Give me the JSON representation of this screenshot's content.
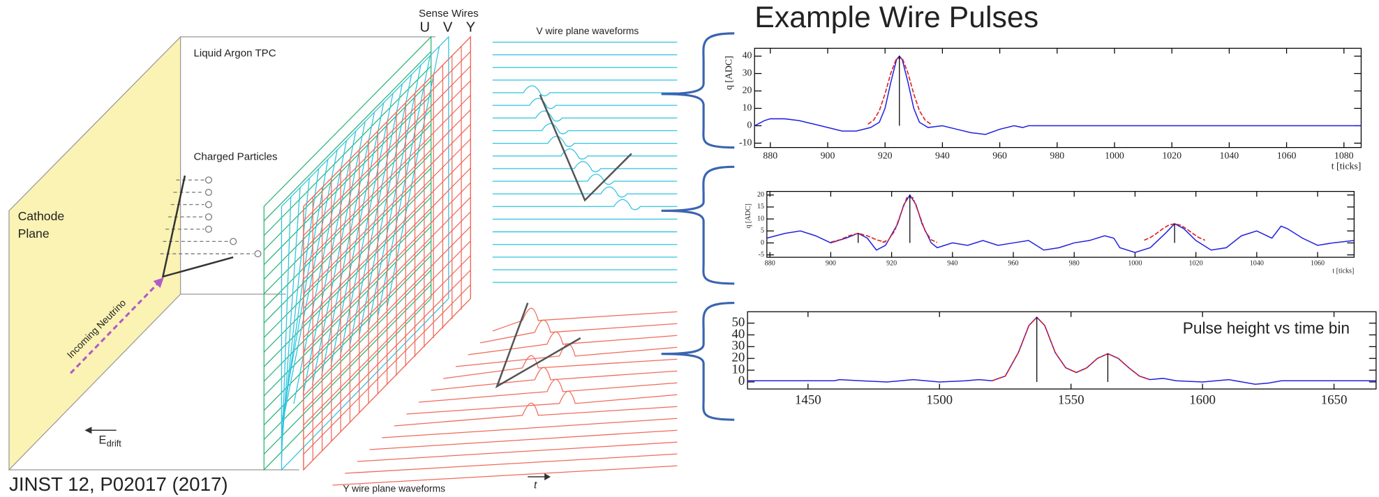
{
  "title": "Example Wire Pulses",
  "citation": "JINST 12, P02017 (2017)",
  "diagram": {
    "tpc_label": "Liquid Argon TPC",
    "sense_wires_label": "Sense Wires",
    "plane_letters": [
      "U",
      "V",
      "Y"
    ],
    "v_waveforms_label": "V wire plane waveforms",
    "y_waveforms_label": "Y wire plane waveforms",
    "charged_particles_label": "Charged Particles",
    "cathode_label": [
      "Cathode",
      "Plane"
    ],
    "neutrino_label": "Incoming Neutrino",
    "drift_label": "E",
    "drift_subscript": "drift",
    "time_label": "t"
  },
  "chart_data": [
    {
      "type": "line",
      "ylabel": "q [ADC]",
      "xlabel": "t [ticks]",
      "xlim": [
        874.5,
        1086
      ],
      "ylim": [
        -12.5,
        44.5
      ],
      "xticks": [
        880,
        900,
        920,
        940,
        960,
        980,
        1000,
        1020,
        1040,
        1060,
        1080
      ],
      "yticks": [
        -10,
        0,
        10,
        20,
        30,
        40
      ],
      "series": [
        {
          "color": "#2020e0",
          "x": [
            874.5,
            878,
            880,
            885,
            890,
            895,
            900,
            905,
            910,
            915,
            918,
            920,
            922,
            924,
            925,
            926,
            928,
            930,
            932,
            935,
            940,
            945,
            950,
            955,
            960,
            965,
            968,
            970,
            1000,
            1086
          ],
          "values": [
            0,
            3,
            4,
            4,
            3,
            1,
            -1,
            -3,
            -3,
            -1,
            2,
            10,
            25,
            38,
            40,
            38,
            25,
            10,
            2,
            -1,
            0,
            -2,
            -4,
            -5,
            -2,
            0,
            -1,
            0,
            0,
            0
          ]
        },
        {
          "color": "#e02020",
          "x": [
            914,
            916,
            918,
            920,
            922,
            924,
            926,
            928,
            930,
            932,
            934,
            936
          ],
          "values": [
            0.9,
            3.2,
            8.6,
            18.3,
            30.2,
            38.8,
            38.8,
            30.2,
            18.3,
            8.6,
            3.2,
            0.9
          ]
        }
      ],
      "peaks": [
        {
          "x": 925,
          "y": 40
        }
      ]
    },
    {
      "type": "line",
      "ylabel": "q [ADC]",
      "xlabel": "t [ticks]",
      "xlim": [
        879,
        1072
      ],
      "ylim": [
        -6,
        21.5
      ],
      "xticks": [
        880,
        900,
        920,
        940,
        960,
        980,
        1000,
        1020,
        1040,
        1060
      ],
      "yticks": [
        -5,
        0,
        5,
        10,
        15,
        20
      ],
      "series": [
        {
          "color": "#2020e0",
          "x": [
            879,
            885,
            890,
            895,
            900,
            905,
            909,
            912,
            915,
            918,
            922,
            924,
            926,
            928,
            930,
            933,
            935,
            940,
            945,
            950,
            955,
            960,
            965,
            970,
            975,
            980,
            985,
            990,
            993,
            995,
            1000,
            1005,
            1010,
            1013,
            1016,
            1020,
            1025,
            1030,
            1035,
            1040,
            1045,
            1048,
            1050,
            1055,
            1060,
            1065,
            1072
          ],
          "values": [
            2,
            4,
            5,
            3,
            0,
            2,
            4,
            2,
            -3,
            -1,
            8,
            16,
            20,
            16,
            8,
            0,
            -2,
            0,
            -1,
            1,
            -1,
            0,
            1,
            -3,
            -2,
            0,
            1,
            3,
            2,
            -2,
            -4,
            -2,
            4,
            8,
            6,
            1,
            -3,
            -2,
            3,
            5,
            2,
            7,
            6,
            2,
            -1,
            0,
            1
          ]
        },
        {
          "color": "#e02020",
          "x": [
            900,
            903,
            906,
            909,
            912,
            915,
            918
          ],
          "values": [
            0.3,
            1.3,
            3.0,
            4,
            3.0,
            1.3,
            0.3
          ]
        },
        {
          "color": "#e02020",
          "x": [
            917,
            919,
            921,
            923,
            925,
            927,
            929,
            931,
            933,
            935
          ],
          "values": [
            0.2,
            1.3,
            5,
            12.1,
            18.9,
            18.9,
            12.1,
            5,
            1.3,
            0.2
          ]
        },
        {
          "color": "#e02020",
          "x": [
            1003,
            1005,
            1007,
            1009,
            1011,
            1013,
            1015,
            1017,
            1019,
            1021,
            1023
          ],
          "values": [
            1.1,
            2.2,
            3.9,
            5.8,
            7.4,
            8,
            7.4,
            5.8,
            3.9,
            2.2,
            1.1
          ]
        }
      ],
      "peaks": [
        {
          "x": 909,
          "y": 4
        },
        {
          "x": 926,
          "y": 20
        },
        {
          "x": 1013,
          "y": 8
        }
      ]
    },
    {
      "type": "line",
      "annotation": "Pulse height vs time bin",
      "xlim": [
        1427,
        1666
      ],
      "ylim": [
        -6,
        59.7
      ],
      "xticks": [
        1450,
        1500,
        1550,
        1600,
        1650
      ],
      "yticks": [
        0,
        10,
        20,
        30,
        40,
        50
      ],
      "series": [
        {
          "color": "#2020e0",
          "x": [
            1427,
            1460,
            1462,
            1470,
            1480,
            1490,
            1500,
            1510,
            1515,
            1520,
            1525,
            1530,
            1534,
            1537,
            1540,
            1544,
            1548,
            1552,
            1556,
            1560,
            1564,
            1568,
            1572,
            1576,
            1580,
            1585,
            1590,
            1600,
            1610,
            1620,
            1625,
            1630,
            1640,
            1666
          ],
          "values": [
            1,
            1,
            2,
            1,
            0,
            2,
            0,
            1,
            2,
            1,
            5,
            25,
            48,
            55,
            48,
            25,
            12,
            8,
            12,
            20,
            24,
            20,
            12,
            5,
            2,
            3,
            1,
            0,
            2,
            -2,
            -1,
            1,
            1,
            1
          ]
        },
        {
          "color": "#e02020",
          "x": [
            1520,
            1525,
            1530,
            1534,
            1537,
            1540,
            1544,
            1548,
            1552,
            1556,
            1560,
            1564,
            1568,
            1572,
            1576,
            1580
          ],
          "values": [
            1,
            5,
            25,
            48,
            55,
            48,
            25,
            12,
            8,
            12,
            20,
            24,
            20,
            12,
            5,
            2
          ]
        }
      ],
      "peaks": [
        {
          "x": 1537,
          "y": 55
        },
        {
          "x": 1564,
          "y": 24
        }
      ]
    }
  ]
}
